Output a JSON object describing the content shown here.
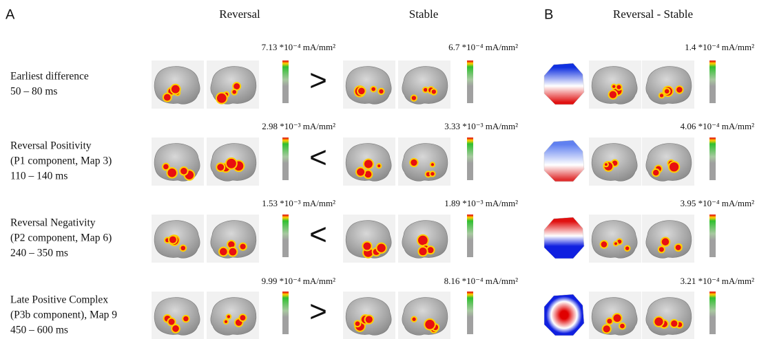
{
  "panel_labels": [
    "A",
    "B"
  ],
  "column_headers": [
    "Reversal",
    "Stable",
    "Reversal - Stable"
  ],
  "rows": [
    {
      "label_lines": [
        "Earliest difference",
        "50 – 80 ms"
      ],
      "comparison": ">",
      "reversal_max": "7.13 *10⁻⁴ mA/mm²",
      "stable_max": "6.7 *10⁻⁴ mA/mm²",
      "difference_max": "1.4 *10⁻⁴ mA/mm²"
    },
    {
      "label_lines": [
        "Reversal Positivity",
        "(P1 component, Map 3)",
        "110 – 140 ms"
      ],
      "comparison": "<",
      "reversal_max": "2.98 *10⁻³ mA/mm²",
      "stable_max": "3.33 *10⁻³ mA/mm²",
      "difference_max": "4.06 *10⁻⁴ mA/mm²"
    },
    {
      "label_lines": [
        "Reversal Negativity",
        "(P2 component, Map 6)",
        "240 – 350 ms"
      ],
      "comparison": "<",
      "reversal_max": "1.53 *10⁻³ mA/mm²",
      "stable_max": "1.89 *10⁻³ mA/mm²",
      "difference_max": "3.95 *10⁻⁴ mA/mm²"
    },
    {
      "label_lines": [
        "Late Positive Complex",
        "(P3b component), Map 9",
        "450 – 600 ms"
      ],
      "comparison": ">",
      "reversal_max": "9.99 *10⁻⁴ mA/mm²",
      "stable_max": "8.16 *10⁻⁴ mA/mm²",
      "difference_max": "3.21 *10⁻⁴ mA/mm²"
    }
  ]
}
